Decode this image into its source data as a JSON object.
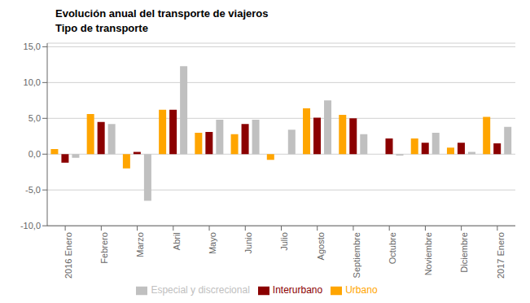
{
  "chart_data": {
    "type": "bar",
    "title": "Evolución anual del transporte de viajeros",
    "subtitle": "Tipo de transporte",
    "categories": [
      "2016 Enero",
      "Febrero",
      "Marzo",
      "Abril",
      "Mayo",
      "Junio",
      "Julio",
      "Agosto",
      "Septiembre",
      "Octubre",
      "Noviembre",
      "Diciembre",
      "2017 Enero"
    ],
    "series": [
      {
        "name": "Urbano",
        "color": "#FFA500",
        "values": [
          0.7,
          5.6,
          -2.0,
          6.2,
          3.0,
          2.8,
          -0.8,
          6.4,
          5.5,
          0.0,
          2.2,
          0.9,
          5.2
        ]
      },
      {
        "name": "Interurbano",
        "color": "#8B0000",
        "values": [
          -1.2,
          4.5,
          0.3,
          6.2,
          3.1,
          4.2,
          0.0,
          5.1,
          5.0,
          2.2,
          1.6,
          1.6,
          1.5
        ]
      },
      {
        "name": "Especial y discrecional",
        "color": "#C0C0C0",
        "values": [
          -0.5,
          4.2,
          -6.5,
          12.3,
          4.8,
          4.8,
          3.4,
          7.5,
          2.8,
          -0.2,
          3.0,
          0.3,
          3.8
        ]
      }
    ],
    "ylim": [
      -10.0,
      15.5
    ],
    "yticks": [
      {
        "value": -10.0,
        "label": "-10,0"
      },
      {
        "value": -5.0,
        "label": "-5,0"
      },
      {
        "value": 0.0,
        "label": "0,0"
      },
      {
        "value": 5.0,
        "label": "5,0"
      },
      {
        "value": 10.0,
        "label": "10,0"
      },
      {
        "value": 15.0,
        "label": "15,0"
      }
    ],
    "grid": true,
    "legend": "bottom"
  }
}
